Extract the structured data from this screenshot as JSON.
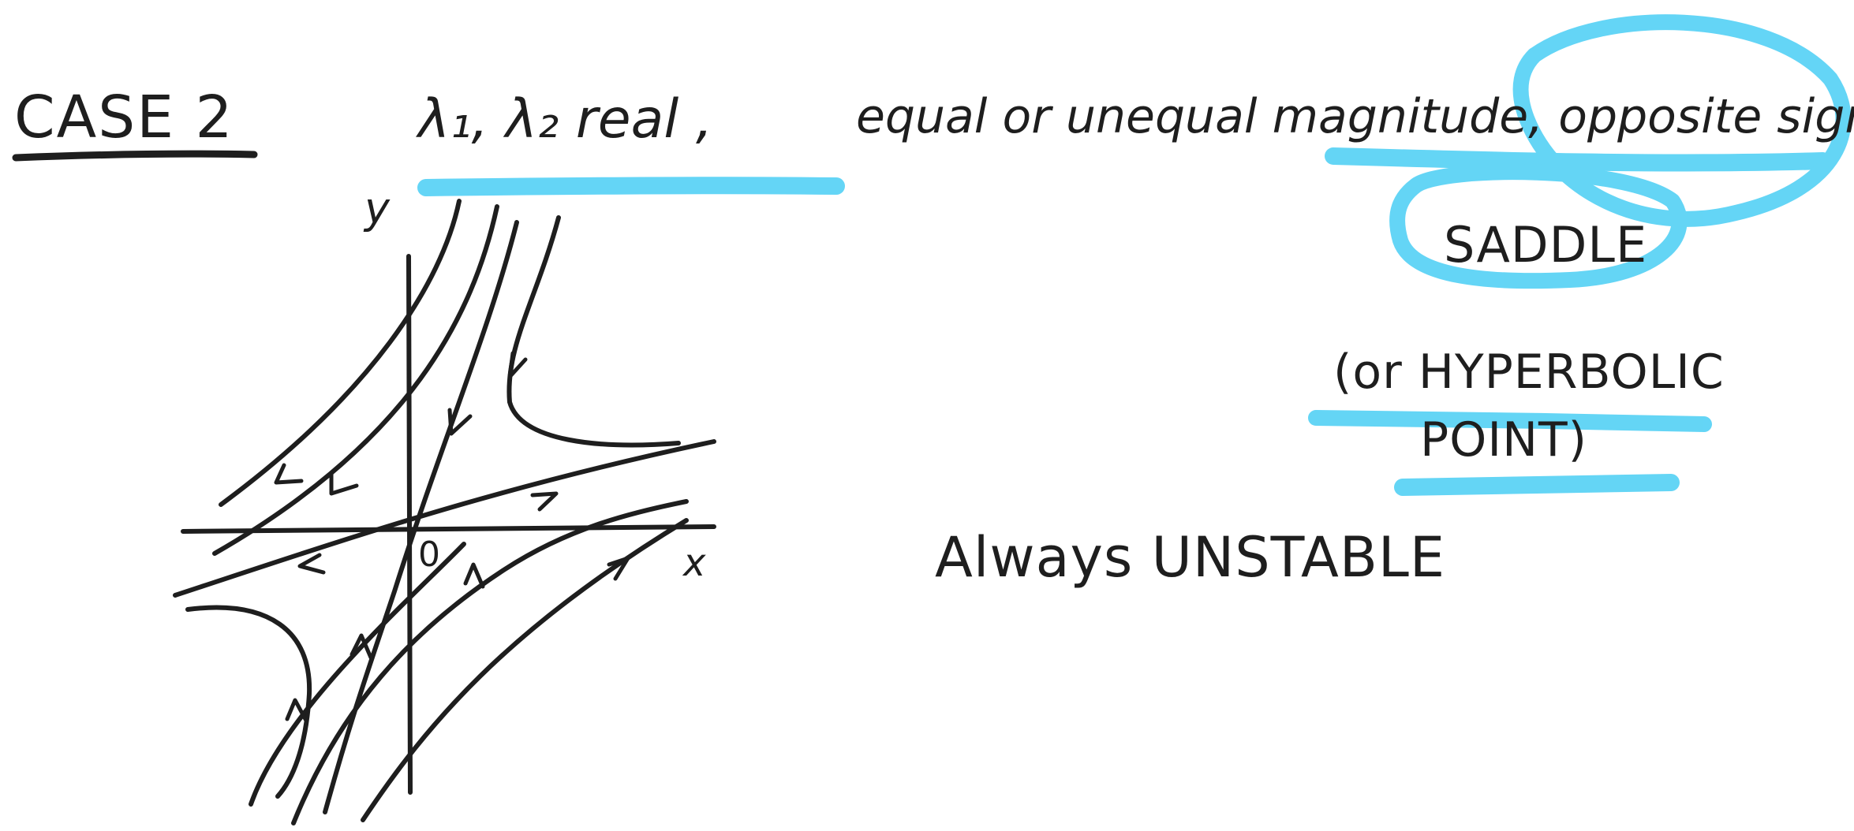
{
  "heading": {
    "case_title": "CASE 2",
    "eigen_text": "λ₁, λ₂ real ,",
    "condition_text": "equal or unequal magnitude, opposite sign"
  },
  "classification": {
    "name": "SADDLE",
    "alt_name_line1": "(or HYPERBOLIC",
    "alt_name_line2": "POINT)"
  },
  "stability": "Always UNSTABLE",
  "phase_portrait": {
    "y_axis_label": "y",
    "x_axis_label": "x",
    "origin_label": "0"
  },
  "colors": {
    "ink": "#1e1e1e",
    "highlighter": "#5cd3f5"
  }
}
